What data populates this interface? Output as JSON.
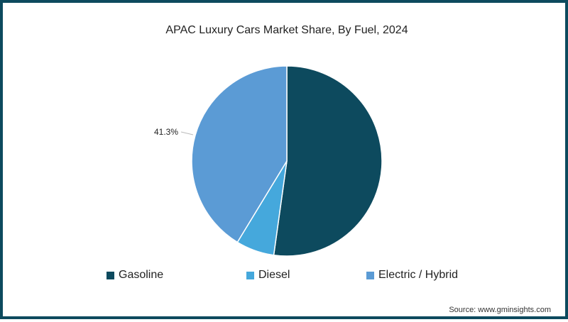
{
  "title": "APAC Luxury Cars Market Share, By Fuel, 2024",
  "source": "Source: www.gminsights.com",
  "colors": {
    "border": "#0d4a5e",
    "gasoline": "#0d4a5e",
    "diesel": "#45a8dc",
    "electric_hybrid": "#5b9bd5"
  },
  "labels": {
    "electric_hybrid_pct": "41.3%"
  },
  "legend": [
    {
      "label": "Gasoline",
      "color": "#0d4a5e"
    },
    {
      "label": "Diesel",
      "color": "#45a8dc"
    },
    {
      "label": "Electric / Hybrid",
      "color": "#5b9bd5"
    }
  ],
  "chart_data": {
    "type": "pie",
    "title": "APAC Luxury Cars Market Share, By Fuel, 2024",
    "categories": [
      "Gasoline",
      "Diesel",
      "Electric / Hybrid"
    ],
    "values": [
      52.2,
      6.5,
      41.3
    ],
    "unit": "%",
    "data_labels": [
      {
        "category": "Electric / Hybrid",
        "text": "41.3%"
      }
    ],
    "legend_position": "bottom",
    "start_angle": "12 o'clock, clockwise"
  }
}
